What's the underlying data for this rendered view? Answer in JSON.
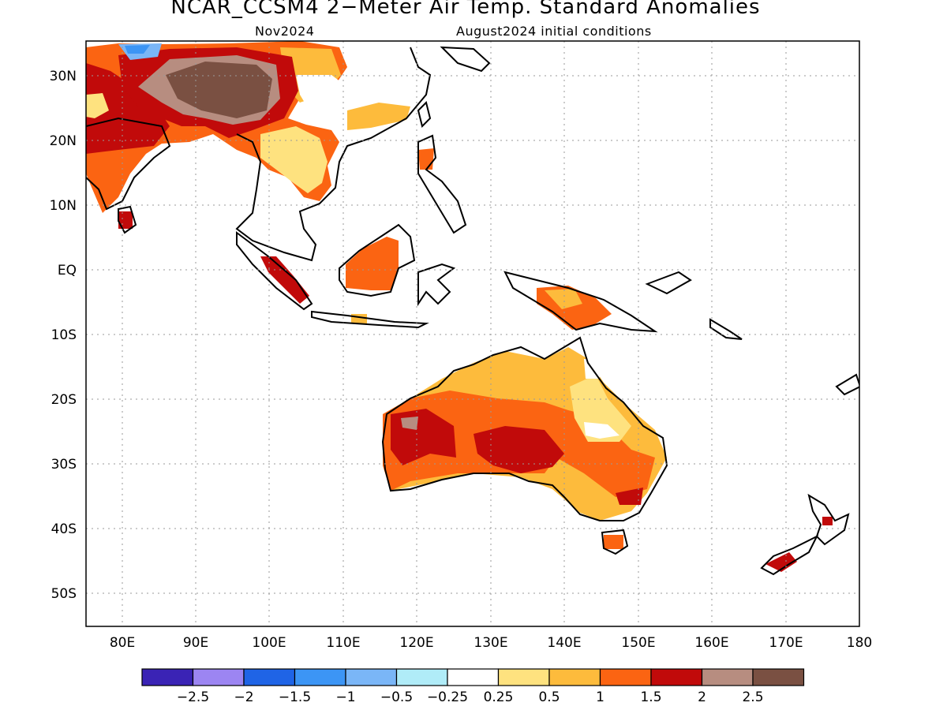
{
  "title": "NCAR_CCSM4 2−Meter Air Temp. Standard Anomalies",
  "forecast_month": "Nov2024",
  "initial_conditions": "August2024 initial conditions",
  "lat_labels": [
    "30N",
    "20N",
    "10N",
    "EQ",
    "10S",
    "20S",
    "30S",
    "40S",
    "50S"
  ],
  "lon_labels": [
    "80E",
    "90E",
    "100E",
    "110E",
    "120E",
    "130E",
    "140E",
    "150E",
    "160E",
    "170E",
    "180"
  ],
  "colorbar": {
    "colors": [
      "#3a23b5",
      "#9c85f2",
      "#1f64e6",
      "#3c95f5",
      "#7ab6f7",
      "#b0ecf8",
      "#ffffff",
      "#fee27f",
      "#fdbb3c",
      "#fb6412",
      "#c10a0a",
      "#b78d80",
      "#7a5042"
    ],
    "labels": [
      "−2.5",
      "−2",
      "−1.5",
      "−1",
      "−0.5",
      "−0.25",
      "0.25",
      "0.5",
      "1",
      "1.5",
      "2",
      "2.5"
    ]
  }
}
